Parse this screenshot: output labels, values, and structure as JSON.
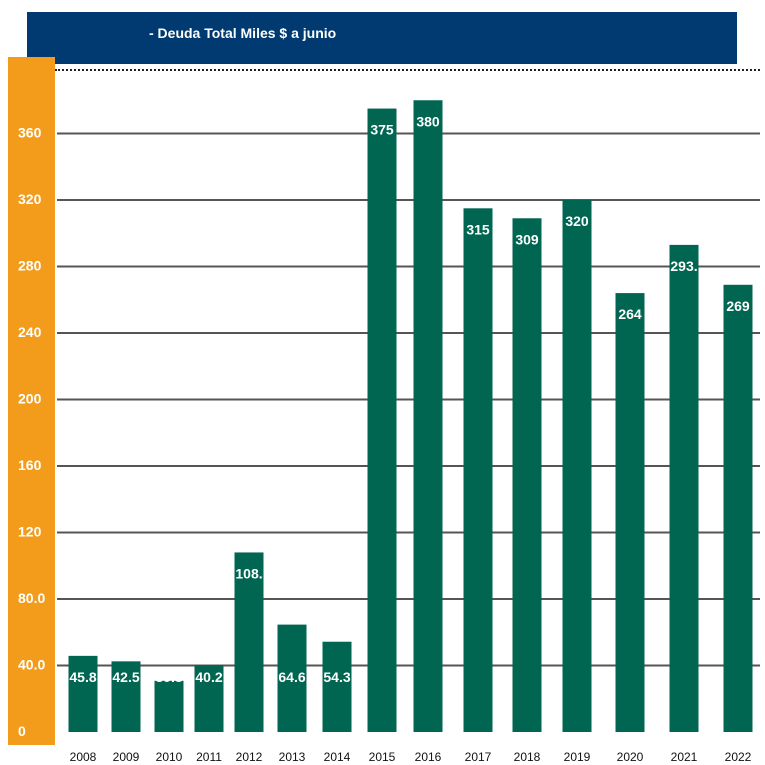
{
  "header": {
    "title": "- Deuda Total Miles $ a junio"
  },
  "colors": {
    "header_bg": "#003a70",
    "axis_strip": "#f39c1b",
    "bar": "#006651",
    "gridline": "#555555",
    "label_text": "#ffffff"
  },
  "chart_data": {
    "type": "bar",
    "title": "- Deuda Total Miles $ a junio",
    "xlabel": "",
    "ylabel": "",
    "categories": [
      "2008",
      "2009",
      "2010",
      "2011",
      "2012",
      "2013",
      "2014",
      "2015",
      "2016",
      "2017",
      "2018",
      "2019",
      "2020",
      "2021",
      "2022"
    ],
    "values": [
      45.8,
      42.5,
      30.8,
      40.2,
      108,
      64.6,
      54.3,
      375,
      380,
      315,
      309,
      320,
      264,
      293,
      269
    ],
    "data_labels": [
      "45.8",
      "42.5",
      "30.8",
      "40.2",
      "108.",
      "64.6",
      "54.3",
      "375",
      "380",
      "315",
      "309",
      "320",
      "264",
      "293.",
      "269"
    ],
    "y_ticks": [
      0,
      40,
      80,
      120,
      160,
      200,
      240,
      280,
      320,
      360
    ],
    "y_tick_labels": [
      "0",
      "40.0",
      "80.0",
      "120",
      "160",
      "200",
      "240",
      "280",
      "320",
      "360"
    ],
    "ylim": [
      0,
      400
    ],
    "grid": true,
    "legend": "none"
  }
}
